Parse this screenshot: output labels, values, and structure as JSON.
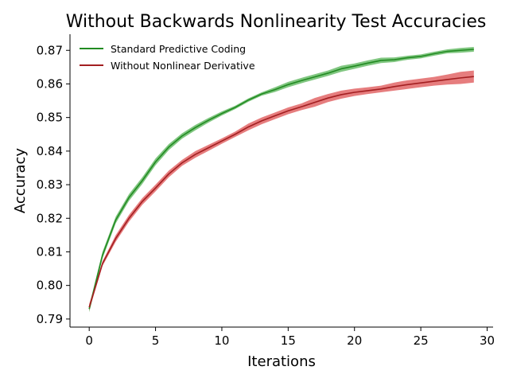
{
  "chart_data": {
    "type": "line",
    "title": "Without Backwards Nonlinearity Test Accuracies",
    "xlabel": "Iterations",
    "ylabel": "Accuracy",
    "xlim": [
      -1.45,
      30.45
    ],
    "ylim": [
      0.7876,
      0.8748
    ],
    "xticks": [
      0,
      5,
      10,
      15,
      20,
      25,
      30
    ],
    "xtick_labels": [
      "0",
      "5",
      "10",
      "15",
      "20",
      "25",
      "30"
    ],
    "yticks": [
      0.79,
      0.8,
      0.81,
      0.82,
      0.83,
      0.84,
      0.85,
      0.86,
      0.87
    ],
    "ytick_labels": [
      "0.79",
      "0.80",
      "0.81",
      "0.82",
      "0.83",
      "0.84",
      "0.85",
      "0.86",
      "0.87"
    ],
    "grid": false,
    "legend_position": "upper-left",
    "x": [
      0,
      1,
      2,
      3,
      4,
      5,
      6,
      7,
      8,
      9,
      10,
      11,
      12,
      13,
      14,
      15,
      16,
      17,
      18,
      19,
      20,
      21,
      22,
      23,
      24,
      25,
      26,
      27,
      28,
      29
    ],
    "series": [
      {
        "name": "Standard Predictive Coding",
        "color": "#2ca02c",
        "line_color": "#228b22",
        "values": [
          0.793,
          0.809,
          0.8195,
          0.8262,
          0.8312,
          0.8368,
          0.8412,
          0.8445,
          0.847,
          0.8492,
          0.8512,
          0.853,
          0.8552,
          0.857,
          0.8583,
          0.8598,
          0.861,
          0.8621,
          0.8632,
          0.8645,
          0.8653,
          0.8662,
          0.867,
          0.8672,
          0.8678,
          0.8682,
          0.869,
          0.8697,
          0.87,
          0.8703
        ],
        "lower": [
          0.792,
          0.808,
          0.8185,
          0.8252,
          0.8302,
          0.8358,
          0.8403,
          0.8437,
          0.8462,
          0.8485,
          0.8506,
          0.8525,
          0.8547,
          0.8565,
          0.8576,
          0.859,
          0.8602,
          0.8613,
          0.8624,
          0.8636,
          0.8645,
          0.8654,
          0.8662,
          0.8665,
          0.8672,
          0.8676,
          0.8684,
          0.8691,
          0.8693,
          0.8696
        ],
        "upper": [
          0.794,
          0.81,
          0.8205,
          0.8272,
          0.8322,
          0.8378,
          0.8421,
          0.8453,
          0.8478,
          0.8499,
          0.8518,
          0.8535,
          0.8557,
          0.8575,
          0.859,
          0.8606,
          0.8618,
          0.8629,
          0.864,
          0.8654,
          0.8661,
          0.867,
          0.8678,
          0.8679,
          0.8684,
          0.8688,
          0.8696,
          0.8703,
          0.8707,
          0.871
        ]
      },
      {
        "name": "Without Nonlinear Derivative",
        "color": "#d62728",
        "line_color": "#a31f21",
        "values": [
          0.7935,
          0.8065,
          0.814,
          0.82,
          0.825,
          0.829,
          0.8332,
          0.8365,
          0.839,
          0.841,
          0.843,
          0.845,
          0.8472,
          0.849,
          0.8505,
          0.852,
          0.8532,
          0.8545,
          0.8558,
          0.8568,
          0.8575,
          0.858,
          0.8585,
          0.8592,
          0.8598,
          0.8603,
          0.8608,
          0.8613,
          0.8618,
          0.8622
        ],
        "lower": [
          0.7925,
          0.8058,
          0.813,
          0.819,
          0.824,
          0.828,
          0.8322,
          0.8356,
          0.838,
          0.8401,
          0.8422,
          0.8442,
          0.8462,
          0.848,
          0.8495,
          0.851,
          0.8522,
          0.8532,
          0.8546,
          0.8556,
          0.8564,
          0.857,
          0.8575,
          0.858,
          0.8585,
          0.859,
          0.8595,
          0.8598,
          0.86,
          0.8604
        ],
        "upper": [
          0.7945,
          0.8072,
          0.815,
          0.821,
          0.826,
          0.83,
          0.8342,
          0.8374,
          0.84,
          0.8419,
          0.8438,
          0.8458,
          0.8482,
          0.85,
          0.8515,
          0.853,
          0.8542,
          0.8558,
          0.857,
          0.858,
          0.8586,
          0.859,
          0.8595,
          0.8604,
          0.8611,
          0.8616,
          0.8621,
          0.8628,
          0.8636,
          0.864
        ]
      }
    ]
  }
}
